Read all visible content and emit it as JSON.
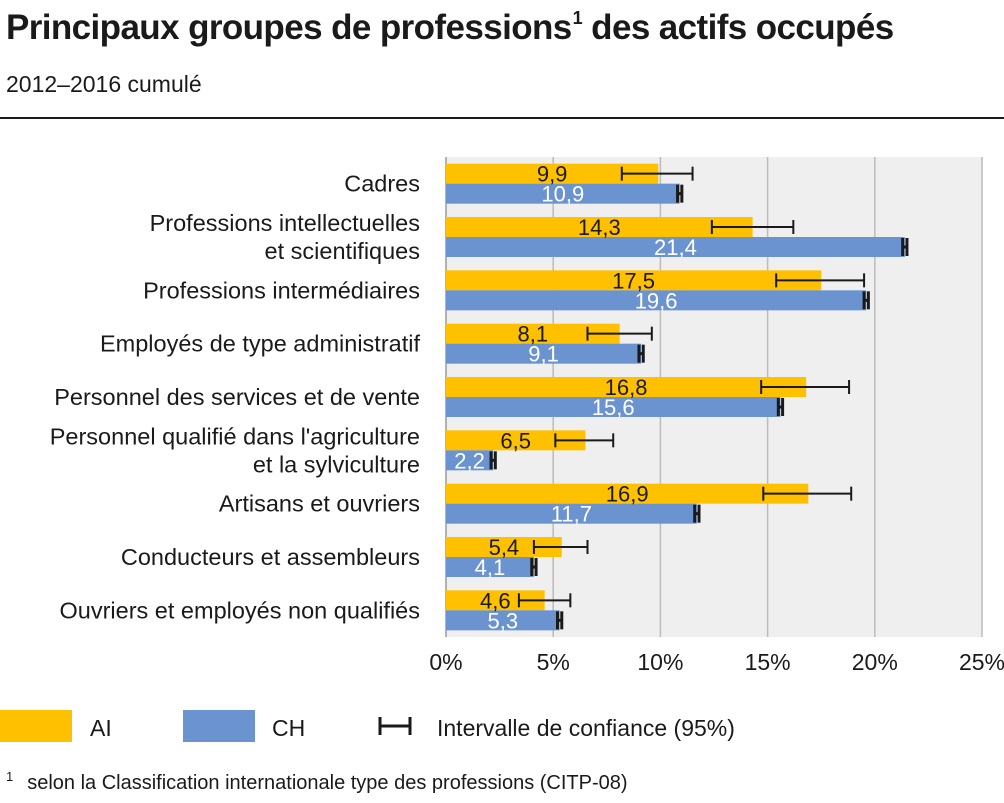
{
  "header": {
    "title": "Principaux groupes de professions",
    "title_sup": "1",
    "subtitle": "2012–2016 cumulé"
  },
  "colors": {
    "ai": "#FFC000",
    "ch": "#6A93CF",
    "plot_bg": "#EFEFEF",
    "grid": "#BBBBBB",
    "text": "#1A1A1A"
  },
  "chart_data": {
    "type": "bar",
    "orientation": "horizontal",
    "title": "Principaux groupes de professions¹ des actifs occupés",
    "subtitle": "2012–2016 cumulé",
    "categories": [
      [
        "Cadres"
      ],
      [
        "Professions intellectuelles",
        "et scientifiques"
      ],
      [
        "Professions intermédiaires"
      ],
      [
        "Employés de type administratif"
      ],
      [
        "Personnel des services et de vente"
      ],
      [
        "Personnel qualifié dans l'agriculture",
        "et la sylviculture"
      ],
      [
        "Artisans et ouvriers"
      ],
      [
        "Conducteurs et assembleurs"
      ],
      [
        "Ouvriers et employés non qualifiés"
      ]
    ],
    "series": [
      {
        "name": "AI",
        "color": "#FFC000",
        "values": [
          9.9,
          14.3,
          17.5,
          8.1,
          16.8,
          6.5,
          16.9,
          5.4,
          4.6
        ],
        "labels": [
          "9,9",
          "14,3",
          "17,5",
          "8,1",
          "16,8",
          "6,5",
          "16,9",
          "5,4",
          "4,6"
        ],
        "ci_low": [
          8.2,
          12.4,
          15.4,
          6.6,
          14.7,
          5.1,
          14.8,
          4.1,
          3.4
        ],
        "ci_high": [
          11.5,
          16.2,
          19.5,
          9.6,
          18.8,
          7.8,
          18.9,
          6.6,
          5.8
        ]
      },
      {
        "name": "CH",
        "color": "#6A93CF",
        "values": [
          10.9,
          21.4,
          19.6,
          9.1,
          15.6,
          2.2,
          11.7,
          4.1,
          5.3
        ],
        "labels": [
          "10,9",
          "21,4",
          "19,6",
          "9,1",
          "15,6",
          "2,2",
          "11,7",
          "4,1",
          "5,3"
        ],
        "ci_low": [
          10.8,
          21.3,
          19.5,
          9.0,
          15.5,
          2.1,
          11.6,
          4.0,
          5.2
        ],
        "ci_high": [
          11.0,
          21.5,
          19.7,
          9.2,
          15.7,
          2.3,
          11.8,
          4.2,
          5.4
        ]
      }
    ],
    "xlim": [
      0,
      25
    ],
    "x_ticks": [
      0,
      5,
      10,
      15,
      20,
      25
    ],
    "x_tick_labels": [
      "0%",
      "5%",
      "10%",
      "15%",
      "20%",
      "25%"
    ],
    "grid": true,
    "legend_position": "bottom"
  },
  "legend": {
    "ai_label": "AI",
    "ch_label": "CH",
    "ci_label": "Intervalle de confiance (95%)"
  },
  "footnote": {
    "marker": "1",
    "text": "selon la Classification internationale type des professions (CITP-08)"
  }
}
